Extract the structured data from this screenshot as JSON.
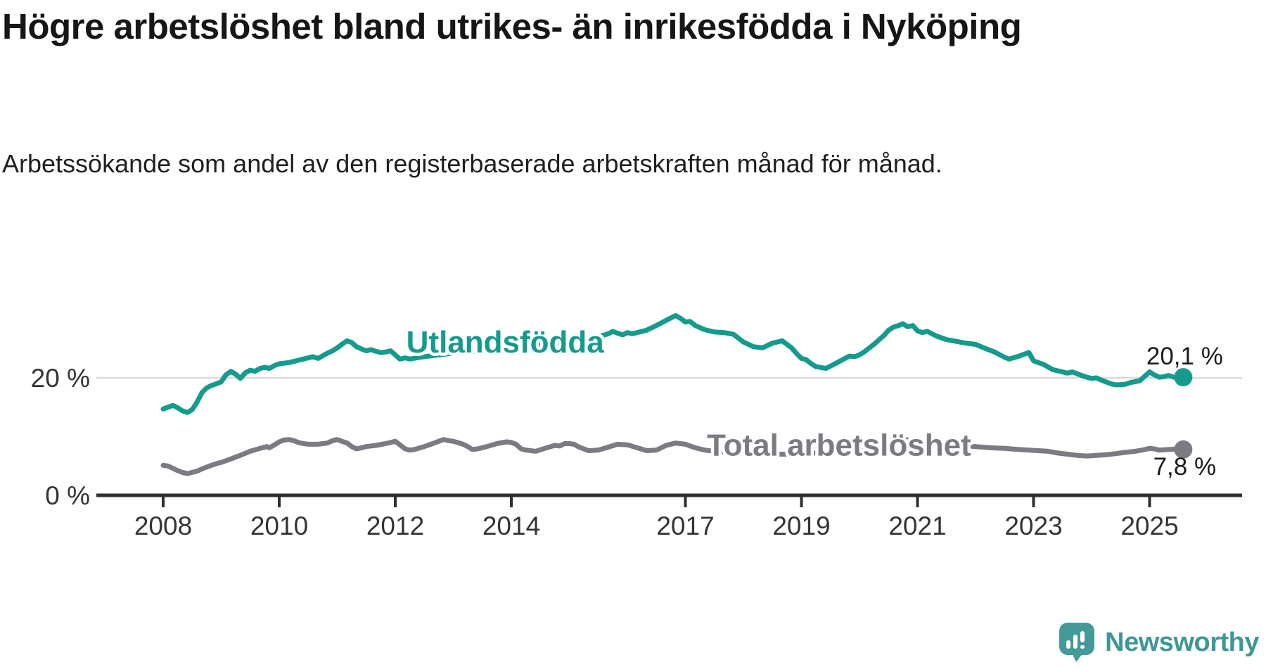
{
  "title": "Högre arbetslöshet bland utrikes- än inrikesfödda i Nyköping",
  "subtitle": "Arbetssökande som andel av den registerbaserade arbetskraften månad för månad.",
  "footer": {
    "brand": "Newsworthy",
    "logo_icon": "speech-bubble-bar-chart",
    "brand_color": "#3e9796",
    "icon_color": "#459a99"
  },
  "chart_data": {
    "type": "line",
    "title": "Högre arbetslöshet bland utrikes- än inrikesfödda i Nyköping",
    "subtitle": "Arbetssökande som andel av den registerbaserade arbetskraften månad för månad.",
    "xlabel": "",
    "ylabel": "",
    "x_range": [
      2008,
      2025.58
    ],
    "ylim": [
      0,
      33
    ],
    "grid": "single horizontal gridline at 20 %",
    "legend_position": "inline labels on lines",
    "x_ticks": [
      2008,
      2010,
      2012,
      2014,
      2017,
      2019,
      2021,
      2023,
      2025
    ],
    "y_ticks": [
      {
        "value": 20,
        "label": "20 %"
      },
      {
        "value": 0,
        "label": "0 %"
      }
    ],
    "y_gridlines": [
      20
    ],
    "series": [
      {
        "name": "Utlandsfödda",
        "color": "#159b8d",
        "end_value": 20.1,
        "end_label": "20,1 %",
        "label": {
          "text": "Utlandsfödda",
          "x": 2012.19,
          "y": 26.2,
          "anchor": "start"
        },
        "points": [
          [
            2008.0,
            14.7
          ],
          [
            2008.08,
            15.0
          ],
          [
            2008.17,
            15.3
          ],
          [
            2008.25,
            14.9
          ],
          [
            2008.33,
            14.4
          ],
          [
            2008.42,
            14.1
          ],
          [
            2008.5,
            14.6
          ],
          [
            2008.58,
            15.8
          ],
          [
            2008.67,
            17.5
          ],
          [
            2008.75,
            18.3
          ],
          [
            2008.83,
            18.7
          ],
          [
            2008.92,
            19.0
          ],
          [
            2009.0,
            19.3
          ],
          [
            2009.08,
            20.5
          ],
          [
            2009.17,
            21.1
          ],
          [
            2009.25,
            20.6
          ],
          [
            2009.33,
            19.9
          ],
          [
            2009.42,
            20.9
          ],
          [
            2009.5,
            21.3
          ],
          [
            2009.58,
            21.1
          ],
          [
            2009.67,
            21.6
          ],
          [
            2009.75,
            21.8
          ],
          [
            2009.83,
            21.6
          ],
          [
            2009.92,
            22.1
          ],
          [
            2010.0,
            22.4
          ],
          [
            2010.17,
            22.6
          ],
          [
            2010.33,
            23.0
          ],
          [
            2010.5,
            23.4
          ],
          [
            2010.58,
            23.6
          ],
          [
            2010.67,
            23.3
          ],
          [
            2010.83,
            24.2
          ],
          [
            2010.92,
            24.6
          ],
          [
            2011.0,
            25.1
          ],
          [
            2011.08,
            25.7
          ],
          [
            2011.17,
            26.3
          ],
          [
            2011.25,
            26.0
          ],
          [
            2011.33,
            25.3
          ],
          [
            2011.42,
            24.9
          ],
          [
            2011.5,
            24.6
          ],
          [
            2011.58,
            24.8
          ],
          [
            2011.67,
            24.5
          ],
          [
            2011.75,
            24.3
          ],
          [
            2011.83,
            24.4
          ],
          [
            2011.92,
            24.6
          ],
          [
            2012.0,
            23.9
          ],
          [
            2012.08,
            23.2
          ],
          [
            2012.17,
            23.4
          ],
          [
            2012.25,
            23.2
          ],
          [
            2012.42,
            23.5
          ],
          [
            2012.58,
            23.7
          ],
          [
            2012.75,
            23.9
          ],
          [
            2013.0,
            24.2
          ],
          [
            2013.25,
            24.4
          ],
          [
            2013.5,
            24.6
          ],
          [
            2013.75,
            24.9
          ],
          [
            2014.0,
            25.1
          ],
          [
            2014.25,
            25.3
          ],
          [
            2014.5,
            25.6
          ],
          [
            2014.75,
            25.9
          ],
          [
            2015.0,
            26.2
          ],
          [
            2015.25,
            26.6
          ],
          [
            2015.5,
            27.0
          ],
          [
            2015.67,
            27.5
          ],
          [
            2015.75,
            27.9
          ],
          [
            2015.83,
            27.6
          ],
          [
            2015.92,
            27.3
          ],
          [
            2016.0,
            27.7
          ],
          [
            2016.08,
            27.5
          ],
          [
            2016.17,
            27.7
          ],
          [
            2016.33,
            28.1
          ],
          [
            2016.5,
            28.9
          ],
          [
            2016.67,
            29.8
          ],
          [
            2016.83,
            30.6
          ],
          [
            2016.92,
            30.1
          ],
          [
            2017.0,
            29.5
          ],
          [
            2017.08,
            29.6
          ],
          [
            2017.17,
            28.9
          ],
          [
            2017.33,
            28.2
          ],
          [
            2017.5,
            27.8
          ],
          [
            2017.67,
            27.7
          ],
          [
            2017.83,
            27.4
          ],
          [
            2018.0,
            26.1
          ],
          [
            2018.17,
            25.3
          ],
          [
            2018.33,
            25.1
          ],
          [
            2018.5,
            25.9
          ],
          [
            2018.67,
            26.3
          ],
          [
            2018.83,
            25.1
          ],
          [
            2018.92,
            24.1
          ],
          [
            2019.0,
            23.3
          ],
          [
            2019.08,
            23.1
          ],
          [
            2019.17,
            22.4
          ],
          [
            2019.25,
            21.9
          ],
          [
            2019.42,
            21.6
          ],
          [
            2019.58,
            22.4
          ],
          [
            2019.75,
            23.3
          ],
          [
            2019.83,
            23.7
          ],
          [
            2019.92,
            23.6
          ],
          [
            2020.0,
            23.9
          ],
          [
            2020.08,
            24.4
          ],
          [
            2020.25,
            25.7
          ],
          [
            2020.42,
            27.2
          ],
          [
            2020.5,
            28.1
          ],
          [
            2020.58,
            28.6
          ],
          [
            2020.67,
            28.9
          ],
          [
            2020.75,
            29.2
          ],
          [
            2020.83,
            28.7
          ],
          [
            2020.92,
            28.9
          ],
          [
            2021.0,
            28.0
          ],
          [
            2021.08,
            27.7
          ],
          [
            2021.17,
            27.9
          ],
          [
            2021.33,
            27.1
          ],
          [
            2021.5,
            26.5
          ],
          [
            2021.67,
            26.2
          ],
          [
            2021.83,
            25.9
          ],
          [
            2022.0,
            25.7
          ],
          [
            2022.17,
            25.0
          ],
          [
            2022.33,
            24.4
          ],
          [
            2022.5,
            23.5
          ],
          [
            2022.58,
            23.2
          ],
          [
            2022.75,
            23.7
          ],
          [
            2022.92,
            24.3
          ],
          [
            2023.0,
            22.9
          ],
          [
            2023.08,
            22.6
          ],
          [
            2023.17,
            22.3
          ],
          [
            2023.33,
            21.4
          ],
          [
            2023.5,
            21.0
          ],
          [
            2023.58,
            20.8
          ],
          [
            2023.67,
            21.0
          ],
          [
            2023.83,
            20.4
          ],
          [
            2023.92,
            20.1
          ],
          [
            2024.0,
            19.9
          ],
          [
            2024.08,
            20.0
          ],
          [
            2024.17,
            19.6
          ],
          [
            2024.33,
            19.0
          ],
          [
            2024.42,
            18.8
          ],
          [
            2024.58,
            18.9
          ],
          [
            2024.67,
            19.2
          ],
          [
            2024.83,
            19.5
          ],
          [
            2024.92,
            20.3
          ],
          [
            2025.0,
            21.0
          ],
          [
            2025.08,
            20.5
          ],
          [
            2025.17,
            20.1
          ],
          [
            2025.25,
            20.2
          ],
          [
            2025.33,
            20.4
          ],
          [
            2025.42,
            20.1
          ],
          [
            2025.5,
            20.0
          ],
          [
            2025.58,
            20.1
          ]
        ]
      },
      {
        "name": "Total arbetslöshet",
        "color": "#7b7b82",
        "end_value": 7.8,
        "end_label": "7,8 %",
        "label": {
          "text": "Total arbetslöshet",
          "x": 2017.37,
          "y": 8.7,
          "anchor": "start"
        },
        "points": [
          [
            2008.0,
            5.1
          ],
          [
            2008.08,
            5.0
          ],
          [
            2008.17,
            4.6
          ],
          [
            2008.25,
            4.2
          ],
          [
            2008.33,
            3.9
          ],
          [
            2008.42,
            3.7
          ],
          [
            2008.5,
            3.9
          ],
          [
            2008.58,
            4.1
          ],
          [
            2008.67,
            4.5
          ],
          [
            2008.75,
            4.8
          ],
          [
            2008.83,
            5.1
          ],
          [
            2008.92,
            5.4
          ],
          [
            2009.0,
            5.6
          ],
          [
            2009.17,
            6.2
          ],
          [
            2009.33,
            6.8
          ],
          [
            2009.5,
            7.5
          ],
          [
            2009.67,
            8.0
          ],
          [
            2009.79,
            8.3
          ],
          [
            2009.83,
            8.1
          ],
          [
            2009.92,
            8.6
          ],
          [
            2010.0,
            9.1
          ],
          [
            2010.08,
            9.4
          ],
          [
            2010.17,
            9.5
          ],
          [
            2010.25,
            9.3
          ],
          [
            2010.33,
            9.0
          ],
          [
            2010.42,
            8.8
          ],
          [
            2010.5,
            8.7
          ],
          [
            2010.67,
            8.7
          ],
          [
            2010.83,
            8.9
          ],
          [
            2010.92,
            9.3
          ],
          [
            2011.0,
            9.5
          ],
          [
            2011.08,
            9.2
          ],
          [
            2011.17,
            8.9
          ],
          [
            2011.25,
            8.3
          ],
          [
            2011.33,
            7.9
          ],
          [
            2011.42,
            8.1
          ],
          [
            2011.5,
            8.3
          ],
          [
            2011.67,
            8.5
          ],
          [
            2011.83,
            8.8
          ],
          [
            2011.92,
            9.0
          ],
          [
            2012.0,
            9.2
          ],
          [
            2012.08,
            8.6
          ],
          [
            2012.17,
            7.9
          ],
          [
            2012.25,
            7.7
          ],
          [
            2012.33,
            7.8
          ],
          [
            2012.5,
            8.3
          ],
          [
            2012.67,
            8.9
          ],
          [
            2012.83,
            9.5
          ],
          [
            2012.92,
            9.3
          ],
          [
            2013.0,
            9.2
          ],
          [
            2013.17,
            8.7
          ],
          [
            2013.25,
            8.3
          ],
          [
            2013.33,
            7.8
          ],
          [
            2013.42,
            7.9
          ],
          [
            2013.58,
            8.3
          ],
          [
            2013.75,
            8.8
          ],
          [
            2013.92,
            9.1
          ],
          [
            2014.0,
            9.0
          ],
          [
            2014.08,
            8.7
          ],
          [
            2014.17,
            7.9
          ],
          [
            2014.25,
            7.7
          ],
          [
            2014.42,
            7.5
          ],
          [
            2014.58,
            8.0
          ],
          [
            2014.75,
            8.5
          ],
          [
            2014.83,
            8.4
          ],
          [
            2014.92,
            8.8
          ],
          [
            2015.0,
            8.8
          ],
          [
            2015.08,
            8.7
          ],
          [
            2015.17,
            8.2
          ],
          [
            2015.33,
            7.6
          ],
          [
            2015.5,
            7.7
          ],
          [
            2015.67,
            8.2
          ],
          [
            2015.83,
            8.7
          ],
          [
            2016.0,
            8.6
          ],
          [
            2016.17,
            8.1
          ],
          [
            2016.33,
            7.6
          ],
          [
            2016.5,
            7.7
          ],
          [
            2016.67,
            8.5
          ],
          [
            2016.83,
            8.9
          ],
          [
            2017.0,
            8.7
          ],
          [
            2017.17,
            8.1
          ],
          [
            2017.33,
            7.7
          ],
          [
            2017.5,
            7.5
          ],
          [
            2017.75,
            7.3
          ],
          [
            2018.0,
            7.2
          ],
          [
            2018.25,
            7.1
          ],
          [
            2018.5,
            7.0
          ],
          [
            2018.75,
            7.0
          ],
          [
            2019.0,
            7.1
          ],
          [
            2019.25,
            7.2
          ],
          [
            2019.5,
            7.3
          ],
          [
            2019.75,
            7.4
          ],
          [
            2020.0,
            7.7
          ],
          [
            2020.25,
            8.6
          ],
          [
            2020.5,
            9.3
          ],
          [
            2020.75,
            9.5
          ],
          [
            2021.0,
            9.3
          ],
          [
            2021.25,
            9.0
          ],
          [
            2021.5,
            8.8
          ],
          [
            2021.75,
            8.5
          ],
          [
            2022.0,
            8.3
          ],
          [
            2022.25,
            8.1
          ],
          [
            2022.5,
            8.0
          ],
          [
            2022.75,
            7.8
          ],
          [
            2022.92,
            7.7
          ],
          [
            2023.08,
            7.6
          ],
          [
            2023.25,
            7.5
          ],
          [
            2023.42,
            7.2
          ],
          [
            2023.58,
            7.0
          ],
          [
            2023.75,
            6.8
          ],
          [
            2023.92,
            6.7
          ],
          [
            2024.08,
            6.8
          ],
          [
            2024.25,
            6.9
          ],
          [
            2024.42,
            7.1
          ],
          [
            2024.58,
            7.3
          ],
          [
            2024.75,
            7.5
          ],
          [
            2024.92,
            7.8
          ],
          [
            2025.0,
            8.0
          ],
          [
            2025.08,
            7.9
          ],
          [
            2025.17,
            7.7
          ],
          [
            2025.33,
            7.8
          ],
          [
            2025.5,
            7.9
          ],
          [
            2025.58,
            7.8
          ]
        ]
      }
    ]
  }
}
